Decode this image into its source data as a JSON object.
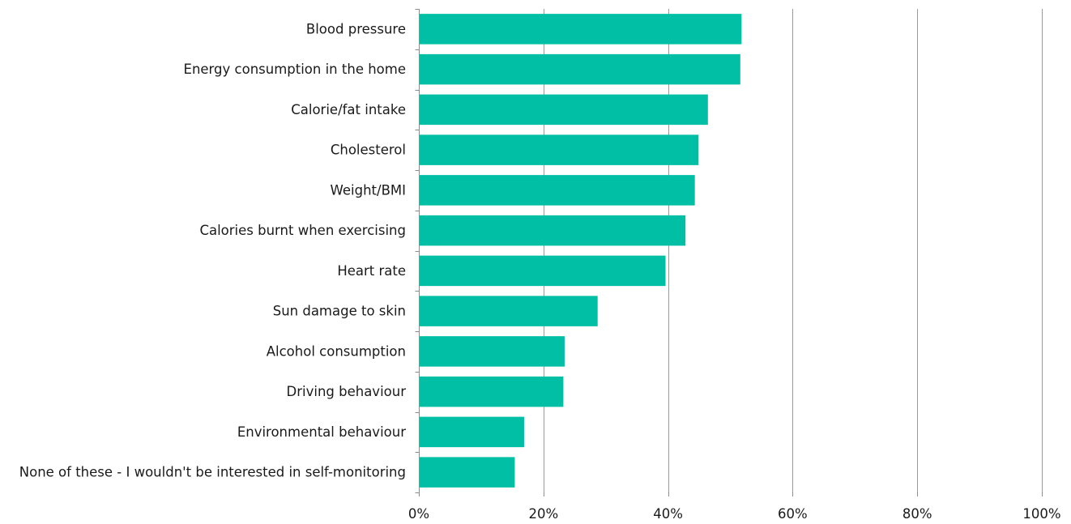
{
  "chart_data": {
    "type": "bar",
    "orientation": "horizontal",
    "categories": [
      "Blood pressure",
      "Energy consumption in the home",
      "Calorie/fat intake",
      "Cholesterol",
      "Weight/BMI",
      "Calories burnt when exercising",
      "Heart rate",
      "Sun damage to skin",
      "Alcohol consumption",
      "Driving behaviour",
      "Environmental behaviour",
      "None of these - I wouldn't be interested in self-monitoring"
    ],
    "values": [
      51.8,
      51.6,
      46.4,
      44.9,
      44.3,
      42.8,
      39.6,
      28.7,
      23.4,
      23.2,
      16.9,
      15.4
    ],
    "xlim": [
      0,
      100
    ],
    "xticks": [
      "0%",
      "20%",
      "40%",
      "60%",
      "80%",
      "100%"
    ],
    "xtick_values": [
      0,
      20,
      40,
      60,
      80,
      100
    ],
    "grid": true,
    "legend": "none",
    "title": "",
    "xlabel": "",
    "ylabel": "",
    "bar_color": "#00BFA5"
  }
}
